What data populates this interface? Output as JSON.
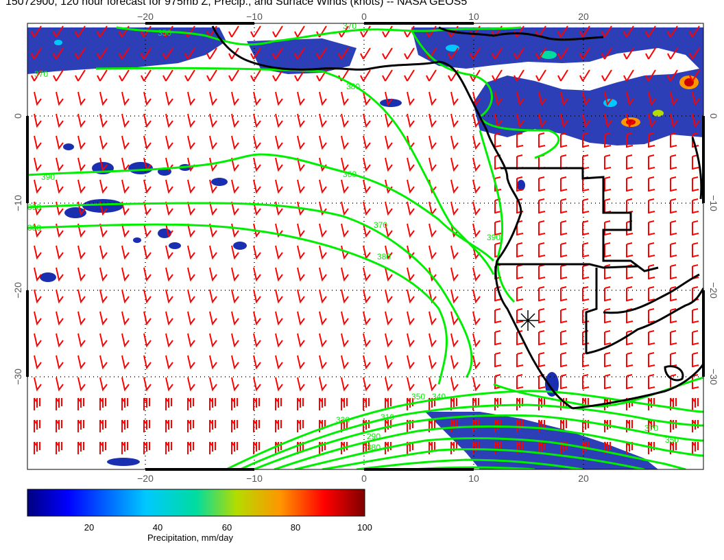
{
  "title": "15072900, 120 hour forecast for 975mb Z, Precip., and Surface Winds (knots) -- NASA GEOS5",
  "map": {
    "lon_ticks": [
      "−20",
      "−10",
      "0",
      "10",
      "20"
    ],
    "lat_ticks": [
      "0",
      "−10",
      "−20",
      "−30"
    ],
    "contour_labels": [
      "350",
      "370",
      "370",
      "380",
      "390",
      "360",
      "390",
      "380",
      "370",
      "380",
      "390",
      "350",
      "340",
      "330",
      "310",
      "290",
      "380",
      "370",
      "350"
    ],
    "colors": {
      "coastline": "#000000",
      "contour": "#00ee00",
      "barb": "#ff0000",
      "precip_low": "#000080",
      "precip_high": "#800000"
    }
  },
  "colorbar": {
    "ticks": [
      "20",
      "40",
      "60",
      "80",
      "100"
    ],
    "label": "Precipitation, mm/day",
    "range": [
      0,
      100
    ]
  }
}
